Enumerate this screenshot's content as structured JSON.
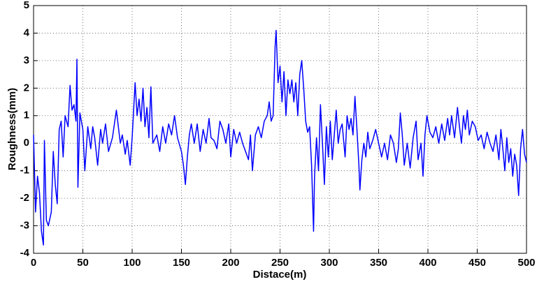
{
  "chart_data": {
    "type": "line",
    "xlabel": "Distace(m)",
    "ylabel": "Roughness(mm)",
    "color": "#0000ff",
    "grid": true,
    "xlim": [
      0,
      500
    ],
    "xticks": [
      0,
      50,
      100,
      150,
      200,
      250,
      300,
      350,
      400,
      450,
      500
    ],
    "ylim": [
      -4,
      5
    ],
    "yticks": [
      -4,
      -3,
      -2,
      -1,
      0,
      1,
      2,
      3,
      4,
      5
    ],
    "x": [
      0,
      2,
      4,
      6,
      8,
      10,
      11,
      13,
      15,
      18,
      20,
      22,
      24,
      26,
      28,
      30,
      32,
      35,
      37,
      39,
      41,
      43,
      44,
      45,
      47,
      50,
      52,
      55,
      58,
      60,
      62,
      65,
      68,
      70,
      73,
      76,
      80,
      84,
      86,
      88,
      90,
      93,
      95,
      98,
      100,
      103,
      105,
      107,
      109,
      111,
      113,
      115,
      117,
      119,
      121,
      125,
      128,
      131,
      134,
      137,
      140,
      143,
      146,
      150,
      152,
      154,
      156,
      158,
      160,
      163,
      166,
      169,
      172,
      175,
      178,
      180,
      183,
      186,
      189,
      192,
      195,
      198,
      200,
      203,
      206,
      209,
      212,
      215,
      218,
      220,
      222,
      225,
      228,
      231,
      234,
      237,
      239,
      241,
      243,
      245,
      246,
      248,
      250,
      252,
      254,
      256,
      258,
      260,
      262,
      264,
      266,
      268,
      270,
      272,
      274,
      276,
      278,
      280,
      282,
      284,
      285,
      287,
      289,
      291,
      293,
      295,
      297,
      299,
      301,
      303,
      305,
      307,
      309,
      311,
      313,
      316,
      318,
      320,
      322,
      324,
      326,
      328,
      330,
      331,
      333,
      335,
      337,
      339,
      341,
      344,
      347,
      350,
      353,
      356,
      359,
      362,
      365,
      368,
      370,
      372,
      374,
      376,
      379,
      382,
      385,
      388,
      390,
      393,
      395,
      397,
      399,
      402,
      405,
      408,
      411,
      414,
      417,
      420,
      422,
      424,
      427,
      430,
      432,
      434,
      436,
      438,
      440,
      442,
      445,
      448,
      451,
      454,
      457,
      460,
      463,
      466,
      469,
      472,
      474,
      476,
      478,
      480,
      482,
      484,
      486,
      488,
      490,
      492,
      494,
      496,
      498,
      500
    ],
    "values": [
      0.3,
      -2.5,
      -1.2,
      -1.8,
      -3.2,
      -3.7,
      0.1,
      -2.8,
      -3.0,
      -2.5,
      -0.3,
      -1.5,
      -2.2,
      0.5,
      0.8,
      -0.5,
      1.0,
      0.6,
      2.1,
      1.2,
      1.4,
      0.8,
      3.05,
      -1.6,
      1.1,
      0.5,
      -1.0,
      0.6,
      -0.2,
      0.6,
      0.2,
      -0.8,
      0.5,
      0.0,
      0.7,
      -0.3,
      0.2,
      1.2,
      0.6,
      0.0,
      0.3,
      -0.4,
      0.1,
      -0.8,
      0.2,
      2.2,
      1.0,
      1.6,
      0.8,
      2.0,
      0.6,
      1.3,
      0.2,
      2.05,
      0.0,
      0.3,
      -0.3,
      0.6,
      0.0,
      0.7,
      0.3,
      1.0,
      0.2,
      -0.3,
      -0.8,
      -1.5,
      -0.5,
      0.3,
      0.7,
      0.0,
      0.7,
      -0.3,
      0.5,
      0.0,
      0.9,
      0.2,
      0.1,
      -0.2,
      0.8,
      0.5,
      0.0,
      0.7,
      -0.5,
      0.5,
      0.0,
      0.4,
      0.0,
      -0.3,
      -0.6,
      0.3,
      -1.0,
      0.3,
      0.6,
      0.2,
      0.8,
      1.0,
      1.5,
      0.8,
      1.0,
      3.5,
      4.1,
      2.2,
      2.8,
      1.5,
      2.6,
      1.0,
      2.3,
      1.8,
      2.3,
      1.5,
      2.2,
      1.0,
      2.5,
      3.0,
      2.0,
      0.8,
      0.4,
      0.6,
      -0.8,
      -3.2,
      -1.2,
      0.2,
      -1.0,
      1.4,
      0.0,
      -1.5,
      0.6,
      -0.5,
      0.8,
      -0.6,
      0.3,
      1.2,
      0.0,
      0.5,
      0.7,
      -0.5,
      1.0,
      0.5,
      0.9,
      0.3,
      1.7,
      0.5,
      -0.8,
      -1.7,
      -0.6,
      0.0,
      -0.5,
      0.4,
      -0.2,
      0.1,
      0.5,
      0.0,
      -0.5,
      0.0,
      -0.6,
      0.3,
      0.0,
      -0.7,
      -0.2,
      1.1,
      0.3,
      -0.8,
      0.0,
      -0.9,
      0.2,
      0.8,
      -0.6,
      0.0,
      -1.2,
      0.3,
      1.0,
      0.4,
      0.2,
      0.6,
      0.0,
      0.7,
      0.1,
      0.9,
      0.3,
      1.0,
      0.2,
      1.3,
      0.6,
      0.0,
      1.0,
      0.5,
      1.2,
      0.3,
      0.8,
      0.6,
      0.1,
      0.3,
      -0.2,
      0.4,
      0.0,
      -0.3,
      0.3,
      -0.6,
      0.5,
      -0.2,
      -1.0,
      0.2,
      -0.7,
      -0.2,
      -1.2,
      -0.4,
      -0.8,
      -1.9,
      -0.2,
      0.5,
      -0.4,
      -0.7
    ]
  }
}
